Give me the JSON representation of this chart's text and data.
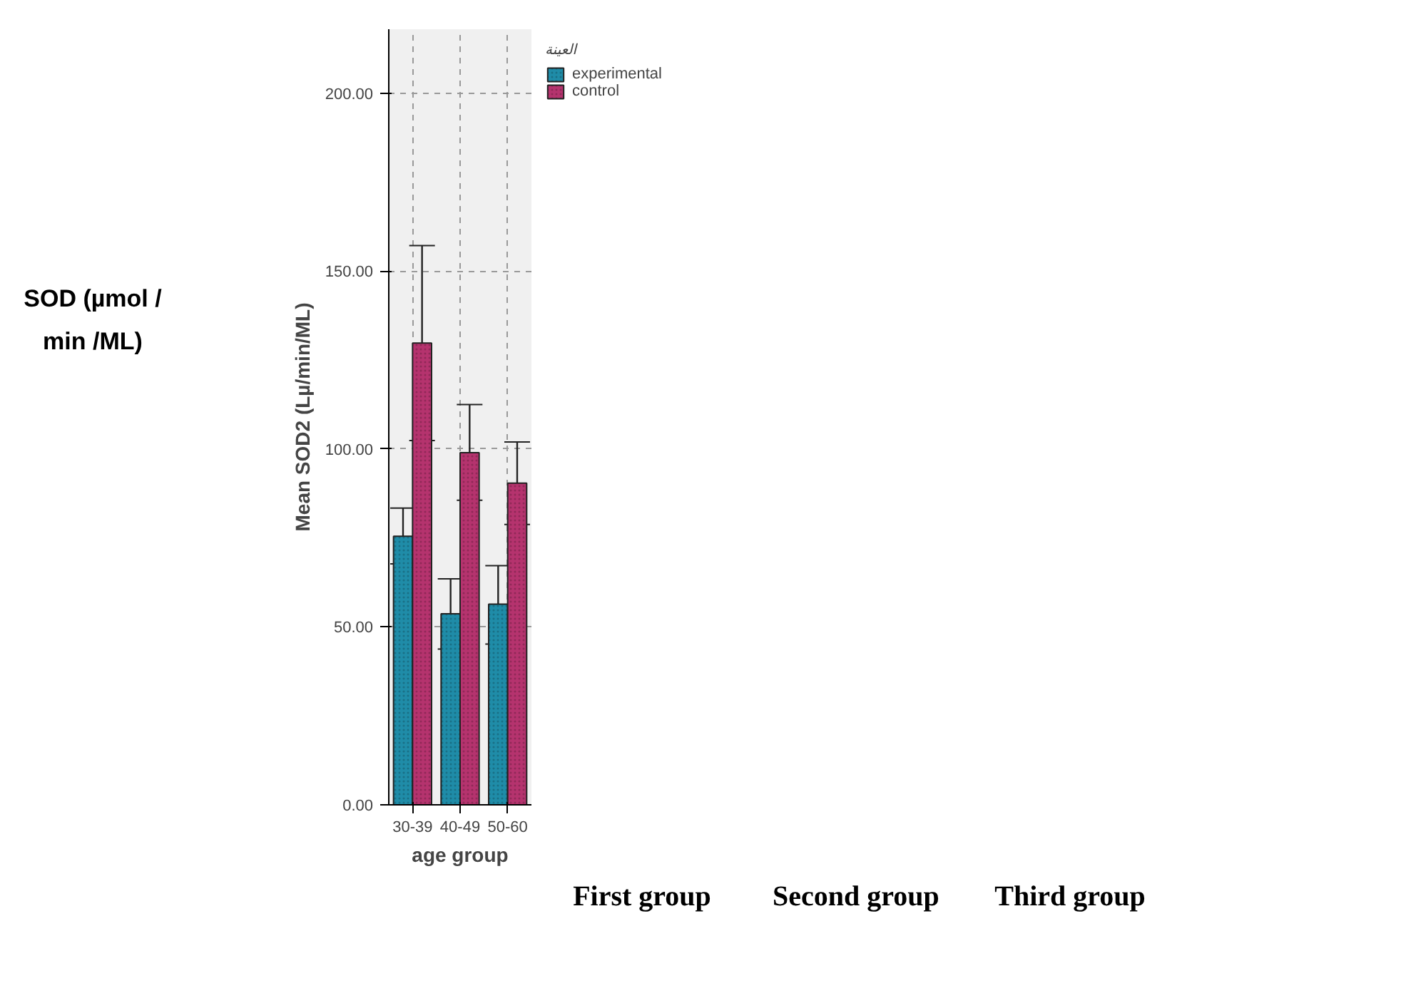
{
  "chart_data": {
    "type": "bar",
    "xlabel": "age group",
    "ylabel": "Mean SOD2 (Lµ/min/ML)",
    "legend_title": "العينة",
    "categories": [
      "30-39",
      "40-49",
      "50-60"
    ],
    "series": [
      {
        "name": "experimental",
        "color": "#1f8ca8",
        "values": [
          75.5,
          53.7,
          56.4
        ],
        "errors": [
          [
            67.7,
            83.4
          ],
          [
            43.8,
            63.5
          ],
          [
            45.2,
            67.2
          ]
        ]
      },
      {
        "name": "control",
        "color": "#b5336e",
        "values": [
          129.8,
          99.0,
          90.4
        ],
        "errors": [
          [
            102.4,
            157.2
          ],
          [
            85.6,
            112.5
          ],
          [
            78.8,
            102.0
          ]
        ]
      }
    ],
    "ylim": [
      0,
      218
    ],
    "yticks": [
      {
        "value": 0,
        "label": "0.00"
      },
      {
        "value": 50,
        "label": "50.00"
      },
      {
        "value": 100,
        "label": "100.00"
      },
      {
        "value": 150,
        "label": "150.00"
      },
      {
        "value": 200,
        "label": "200.00"
      }
    ],
    "grid": true,
    "legend": "top right",
    "annotations": [
      "SOD (µmol / min /ML)",
      "First group",
      "Second group",
      "Third group"
    ]
  }
}
